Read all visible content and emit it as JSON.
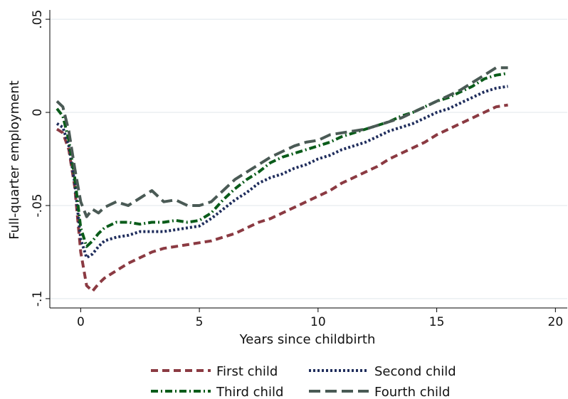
{
  "chart_data": {
    "type": "line",
    "xlabel": "Years since childbirth",
    "ylabel": "Full-quarter employment",
    "xlim": [
      -1.3,
      20.5
    ],
    "ylim": [
      -0.105,
      0.055
    ],
    "xticks": [
      {
        "value": 0,
        "label": "0"
      },
      {
        "value": 5,
        "label": "5"
      },
      {
        "value": 10,
        "label": "10"
      },
      {
        "value": 15,
        "label": "15"
      },
      {
        "value": 20,
        "label": "20"
      }
    ],
    "yticks": [
      {
        "value": -0.1,
        "label": "-.1"
      },
      {
        "value": -0.05,
        "label": "-.05"
      },
      {
        "value": 0,
        "label": "0"
      },
      {
        "value": 0.05,
        "label": ".05"
      }
    ],
    "grid": "horizontal",
    "legend_position": "bottom",
    "series": [
      {
        "name": "First child",
        "color": "#8b3a42",
        "dash": "dashed",
        "x": [
          -1,
          -0.75,
          -0.5,
          -0.25,
          0,
          0.25,
          0.5,
          0.75,
          1,
          1.5,
          2,
          2.5,
          3,
          3.5,
          4,
          4.5,
          5,
          5.5,
          6,
          6.5,
          7,
          7.5,
          8,
          8.5,
          9,
          9.5,
          10,
          10.5,
          11,
          11.5,
          12,
          12.5,
          13,
          13.5,
          14,
          14.5,
          15,
          15.5,
          16,
          16.5,
          17,
          17.5,
          18
        ],
        "y": [
          -0.009,
          -0.011,
          -0.02,
          -0.04,
          -0.075,
          -0.093,
          -0.096,
          -0.092,
          -0.089,
          -0.085,
          -0.081,
          -0.078,
          -0.075,
          -0.073,
          -0.072,
          -0.071,
          -0.07,
          -0.069,
          -0.067,
          -0.065,
          -0.062,
          -0.059,
          -0.057,
          -0.054,
          -0.051,
          -0.048,
          -0.045,
          -0.042,
          -0.038,
          -0.035,
          -0.032,
          -0.029,
          -0.025,
          -0.022,
          -0.019,
          -0.016,
          -0.012,
          -0.009,
          -0.006,
          -0.003,
          0.0,
          0.003,
          0.004
        ]
      },
      {
        "name": "Second child",
        "color": "#1f2d5c",
        "dash": "dotted",
        "x": [
          -1,
          -0.75,
          -0.5,
          -0.25,
          0,
          0.25,
          0.5,
          0.75,
          1,
          1.5,
          2,
          2.5,
          3,
          3.5,
          4,
          4.5,
          5,
          5.5,
          6,
          6.5,
          7,
          7.5,
          8,
          8.5,
          9,
          9.5,
          10,
          10.5,
          11,
          11.5,
          12,
          12.5,
          13,
          13.5,
          14,
          14.5,
          15,
          15.5,
          16,
          16.5,
          17,
          17.5,
          18
        ],
        "y": [
          -0.006,
          -0.008,
          -0.018,
          -0.038,
          -0.068,
          -0.078,
          -0.076,
          -0.072,
          -0.069,
          -0.067,
          -0.066,
          -0.064,
          -0.064,
          -0.064,
          -0.063,
          -0.062,
          -0.061,
          -0.057,
          -0.052,
          -0.047,
          -0.043,
          -0.038,
          -0.035,
          -0.033,
          -0.03,
          -0.028,
          -0.025,
          -0.023,
          -0.02,
          -0.018,
          -0.016,
          -0.013,
          -0.01,
          -0.008,
          -0.006,
          -0.003,
          0.0,
          0.002,
          0.005,
          0.008,
          0.011,
          0.013,
          0.014
        ]
      },
      {
        "name": "Third child",
        "color": "#0a5c1a",
        "dash": "dashdot",
        "x": [
          -1,
          -0.75,
          -0.5,
          -0.25,
          0,
          0.25,
          0.5,
          0.75,
          1,
          1.5,
          2,
          2.5,
          3,
          3.5,
          4,
          4.5,
          5,
          5.5,
          6,
          6.5,
          7,
          7.5,
          8,
          8.5,
          9,
          9.5,
          10,
          10.5,
          11,
          11.5,
          12,
          12.5,
          13,
          13.5,
          14,
          14.5,
          15,
          15.5,
          16,
          16.5,
          17,
          17.5,
          18
        ],
        "y": [
          0.002,
          -0.002,
          -0.015,
          -0.035,
          -0.062,
          -0.072,
          -0.069,
          -0.065,
          -0.062,
          -0.059,
          -0.059,
          -0.06,
          -0.059,
          -0.059,
          -0.058,
          -0.059,
          -0.058,
          -0.054,
          -0.047,
          -0.041,
          -0.036,
          -0.032,
          -0.027,
          -0.024,
          -0.022,
          -0.02,
          -0.018,
          -0.016,
          -0.013,
          -0.011,
          -0.009,
          -0.007,
          -0.005,
          -0.002,
          0.0,
          0.003,
          0.006,
          0.008,
          0.011,
          0.014,
          0.018,
          0.02,
          0.021
        ]
      },
      {
        "name": "Fourth child",
        "color": "#4a5a55",
        "dash": "longdash",
        "x": [
          -1,
          -0.75,
          -0.5,
          -0.25,
          0,
          0.25,
          0.5,
          0.75,
          1,
          1.5,
          2,
          2.5,
          3,
          3.5,
          4,
          4.5,
          5,
          5.5,
          6,
          6.5,
          7,
          7.5,
          8,
          8.5,
          9,
          9.5,
          10,
          10.5,
          11,
          11.5,
          12,
          12.5,
          13,
          13.5,
          14,
          14.5,
          15,
          15.5,
          16,
          16.5,
          17,
          17.5,
          18
        ],
        "y": [
          0.006,
          0.003,
          -0.01,
          -0.03,
          -0.048,
          -0.056,
          -0.052,
          -0.054,
          -0.051,
          -0.048,
          -0.05,
          -0.046,
          -0.042,
          -0.048,
          -0.047,
          -0.05,
          -0.05,
          -0.048,
          -0.042,
          -0.036,
          -0.032,
          -0.028,
          -0.024,
          -0.021,
          -0.018,
          -0.016,
          -0.015,
          -0.012,
          -0.011,
          -0.01,
          -0.009,
          -0.007,
          -0.005,
          -0.003,
          0.0,
          0.003,
          0.006,
          0.009,
          0.012,
          0.016,
          0.02,
          0.024,
          0.024
        ]
      }
    ]
  }
}
